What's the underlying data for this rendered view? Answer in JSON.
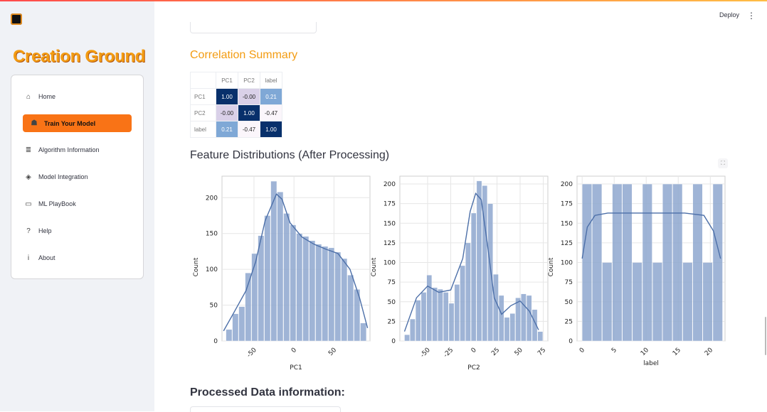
{
  "sidebar": {
    "brand": "Creation Ground",
    "items": [
      {
        "label": "Home",
        "icon": "home-icon",
        "glyph": "⌂",
        "active": false
      },
      {
        "label": "Train Your Model",
        "icon": "robot-icon",
        "glyph": "☗",
        "active": true
      },
      {
        "label": "Algorithm Information",
        "icon": "database-icon",
        "glyph": "≣",
        "active": false
      },
      {
        "label": "Model Integration",
        "icon": "layers-icon",
        "glyph": "◈",
        "active": false
      },
      {
        "label": "ML PlayBook",
        "icon": "book-icon",
        "glyph": "▭",
        "active": false
      },
      {
        "label": "Help",
        "icon": "help-icon",
        "glyph": "?",
        "active": false
      },
      {
        "label": "About",
        "icon": "info-icon",
        "glyph": "i",
        "active": false
      }
    ]
  },
  "header": {
    "deploy_label": "Deploy",
    "menu_glyph": "⋮"
  },
  "main": {
    "correlation_title": "Correlation Summary",
    "correlation": {
      "columns": [
        "PC1",
        "PC2",
        "label"
      ],
      "rows": [
        {
          "name": "PC1",
          "values": [
            "1.00",
            "-0.00",
            "0.21"
          ]
        },
        {
          "name": "PC2",
          "values": [
            "-0.00",
            "1.00",
            "-0.47"
          ]
        },
        {
          "name": "label",
          "values": [
            "0.21",
            "-0.47",
            "1.00"
          ]
        }
      ]
    },
    "features_title": "Feature Distributions (After Processing)",
    "processed_title": "Processed Data information:",
    "fullscreen_glyph": "⛶"
  },
  "chart_data": [
    {
      "type": "bar",
      "xlabel": "PC1",
      "ylabel": "Count",
      "xlim": [
        -90,
        95
      ],
      "ylim": [
        0,
        230
      ],
      "xticks": [
        -50,
        0,
        50
      ],
      "yticks": [
        0,
        50,
        100,
        150,
        200
      ],
      "bin_width": 8,
      "bin_starts": [
        -85,
        -77,
        -69,
        -61,
        -53,
        -45,
        -37,
        -29,
        -21,
        -13,
        -5,
        3,
        11,
        19,
        27,
        35,
        43,
        51,
        59,
        67,
        75,
        83
      ],
      "values": [
        16,
        38,
        48,
        95,
        122,
        147,
        175,
        223,
        208,
        178,
        162,
        150,
        146,
        140,
        135,
        132,
        130,
        124,
        115,
        92,
        72,
        25
      ],
      "kde": [
        [
          -88,
          14
        ],
        [
          -75,
          40
        ],
        [
          -60,
          70
        ],
        [
          -48,
          110
        ],
        [
          -36,
          168
        ],
        [
          -22,
          205
        ],
        [
          -15,
          198
        ],
        [
          -5,
          165
        ],
        [
          10,
          145
        ],
        [
          25,
          135
        ],
        [
          40,
          128
        ],
        [
          55,
          122
        ],
        [
          70,
          100
        ],
        [
          82,
          60
        ],
        [
          92,
          18
        ]
      ],
      "grid": true
    },
    {
      "type": "bar",
      "xlabel": "PC2",
      "ylabel": "Count",
      "xlim": [
        -80,
        80
      ],
      "ylim": [
        0,
        210
      ],
      "xticks": [
        -50,
        -25,
        0,
        25,
        50,
        75
      ],
      "yticks": [
        0,
        25,
        50,
        75,
        100,
        125,
        150,
        175,
        200
      ],
      "bin_width": 6,
      "bin_starts": [
        -75,
        -69,
        -63,
        -57,
        -51,
        -45,
        -39,
        -33,
        -27,
        -21,
        -15,
        -9,
        -3,
        3,
        9,
        15,
        21,
        27,
        33,
        39,
        45,
        51,
        57,
        63,
        69
      ],
      "values": [
        8,
        28,
        52,
        62,
        84,
        68,
        66,
        62,
        48,
        72,
        96,
        125,
        163,
        204,
        198,
        175,
        85,
        58,
        30,
        35,
        55,
        60,
        58,
        40,
        12
      ],
      "kde": [
        [
          -75,
          12
        ],
        [
          -62,
          55
        ],
        [
          -50,
          70
        ],
        [
          -38,
          62
        ],
        [
          -25,
          65
        ],
        [
          -12,
          105
        ],
        [
          -4,
          165
        ],
        [
          2,
          188
        ],
        [
          8,
          180
        ],
        [
          15,
          120
        ],
        [
          22,
          55
        ],
        [
          30,
          34
        ],
        [
          40,
          45
        ],
        [
          50,
          51
        ],
        [
          60,
          38
        ],
        [
          70,
          14
        ]
      ],
      "grid": true
    },
    {
      "type": "bar",
      "xlabel": "label",
      "ylabel": "Count",
      "xlim": [
        -0.8,
        22.3
      ],
      "ylim": [
        0,
        210
      ],
      "xticks": [
        0,
        5,
        10,
        15,
        20
      ],
      "yticks": [
        0,
        25,
        50,
        75,
        100,
        125,
        150,
        175,
        200
      ],
      "bin_width": 1.57,
      "bin_starts": [
        0,
        1.57,
        3.14,
        4.71,
        6.28,
        7.85,
        9.42,
        10.99,
        12.56,
        14.13,
        15.7,
        17.27,
        18.84,
        20.41
      ],
      "values": [
        200,
        200,
        100,
        200,
        200,
        100,
        200,
        100,
        200,
        200,
        100,
        200,
        100,
        200
      ],
      "kde": [
        [
          0,
          105
        ],
        [
          0.8,
          145
        ],
        [
          2,
          160
        ],
        [
          4,
          163
        ],
        [
          8,
          163
        ],
        [
          12,
          163
        ],
        [
          16,
          163
        ],
        [
          19,
          160
        ],
        [
          20.5,
          140
        ],
        [
          21.6,
          105
        ]
      ],
      "grid": true
    }
  ]
}
